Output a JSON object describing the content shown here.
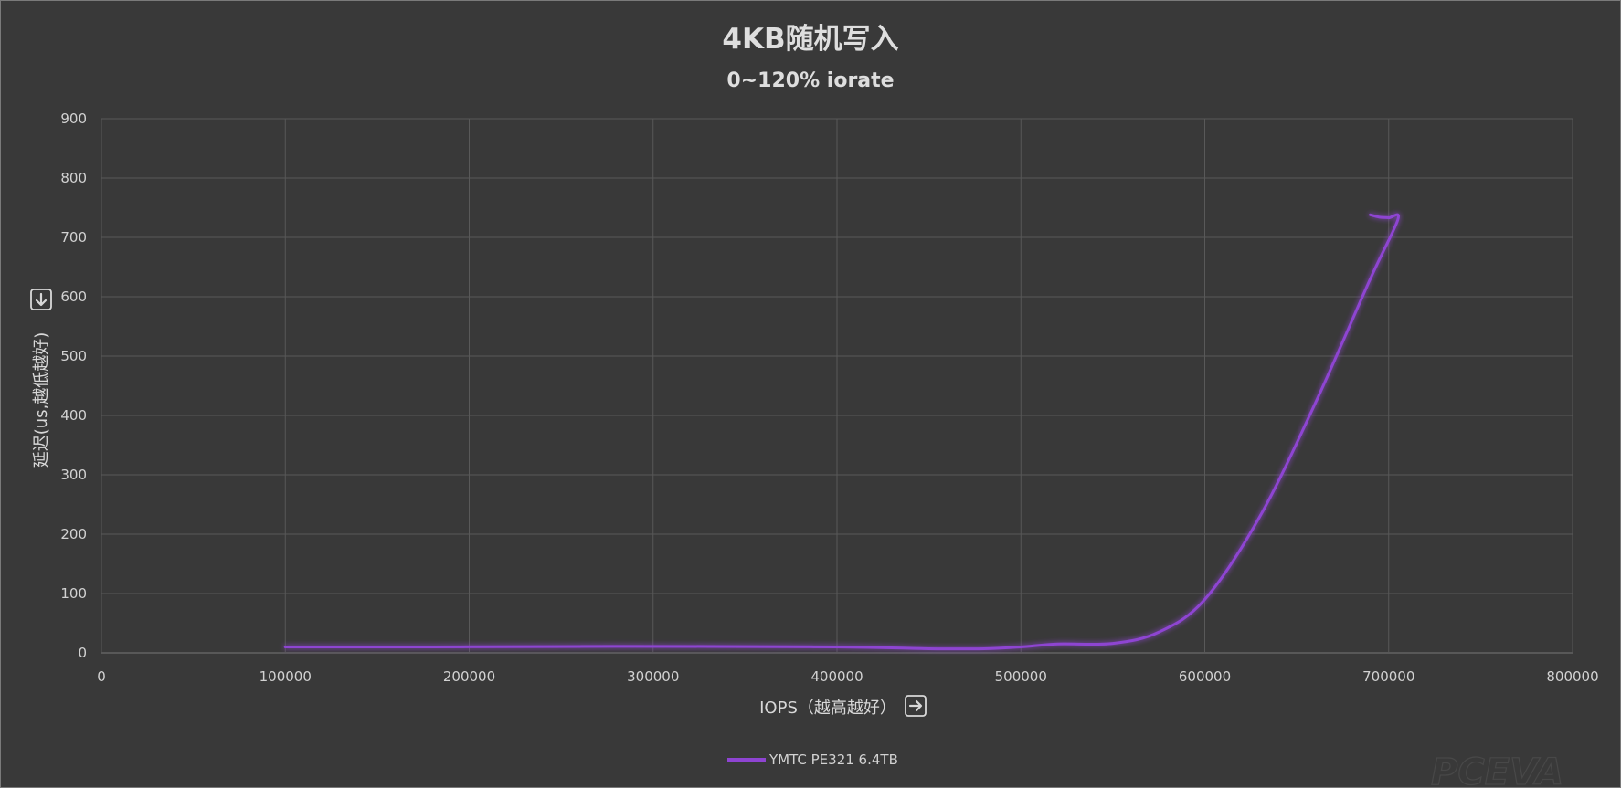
{
  "chart_data": {
    "type": "line",
    "title": "4KB随机写入",
    "subtitle": "0~120% iorate",
    "xlabel": "IOPS（越高越好）",
    "ylabel": "延迟(us,越低越好)",
    "xlim": [
      0,
      800000
    ],
    "ylim": [
      0,
      900
    ],
    "xticks": [
      0,
      100000,
      200000,
      300000,
      400000,
      500000,
      600000,
      700000,
      800000
    ],
    "yticks": [
      0,
      100,
      200,
      300,
      400,
      500,
      600,
      700,
      800,
      900
    ],
    "grid": true,
    "legend": "bottom-center",
    "series": [
      {
        "name": "YMTC PE321 6.4TB",
        "color": "#8e44d2",
        "x": [
          100000,
          180000,
          280000,
          400000,
          450000,
          480000,
          500000,
          520000,
          550000,
          575000,
          600000,
          630000,
          660000,
          690000,
          705000,
          700000,
          695000,
          690000
        ],
        "y": [
          10,
          10,
          11,
          10,
          7,
          7,
          10,
          15,
          16,
          35,
          90,
          230,
          420,
          630,
          730,
          733,
          734,
          738
        ]
      }
    ]
  },
  "icons": {
    "ylabel_arrow": "down-arrow-box-icon",
    "xlabel_arrow": "right-arrow-box-icon"
  },
  "watermark": "PCEVA"
}
